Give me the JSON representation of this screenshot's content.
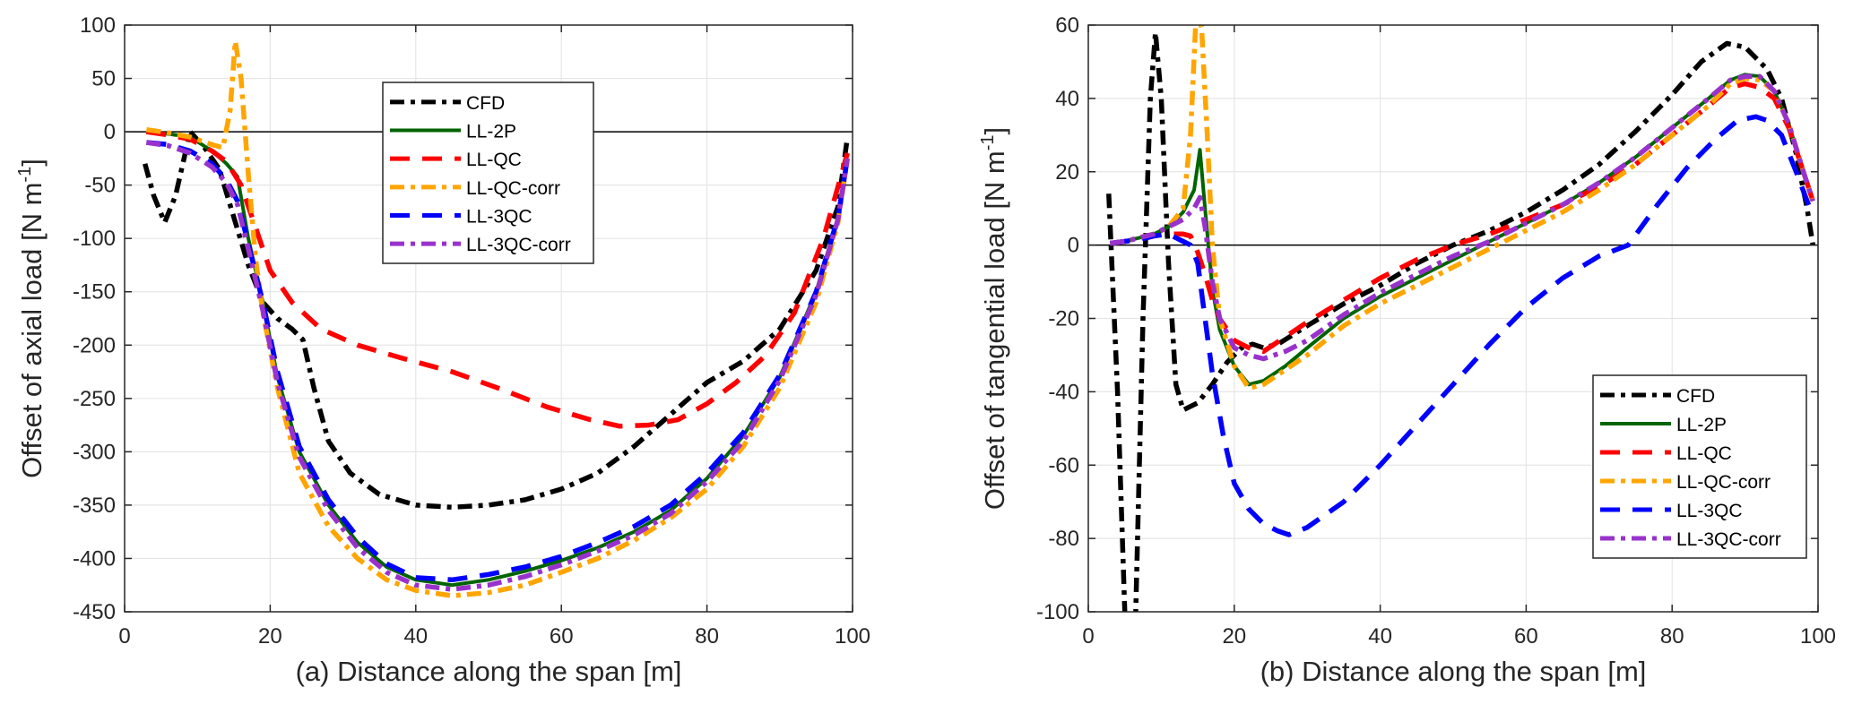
{
  "chart_data": [
    {
      "id": "axial",
      "type": "line",
      "xlabel": "(a) Distance along the span [m]",
      "ylabel": "Offset of axial load [N m",
      "ylabel_sup": "-1",
      "ylabel_end": "]",
      "xlim": [
        0,
        100
      ],
      "ylim": [
        -450,
        100
      ],
      "xticks": [
        0,
        20,
        40,
        60,
        80,
        100
      ],
      "yticks": [
        100,
        50,
        0,
        -50,
        -100,
        -150,
        -200,
        -250,
        -300,
        -350,
        -400,
        -450
      ],
      "grid": true,
      "zero_line": true,
      "legend_position": "top-center",
      "series": [
        {
          "name": "CFD",
          "color": "#000000",
          "style": "dashdot",
          "x": [
            2.8,
            4,
            5.5,
            7,
            9,
            11,
            13,
            15,
            17,
            19,
            21,
            23,
            24.5,
            26,
            28,
            31,
            35,
            40,
            45,
            50,
            55,
            60,
            65,
            70,
            75,
            80,
            85,
            90,
            95,
            98,
            99.3
          ],
          "y": [
            -30,
            -60,
            -85,
            -60,
            0,
            -15,
            -35,
            -80,
            -125,
            -160,
            -175,
            -185,
            -195,
            -240,
            -290,
            -320,
            -340,
            -350,
            -352,
            -350,
            -345,
            -335,
            -320,
            -295,
            -265,
            -235,
            -215,
            -185,
            -130,
            -70,
            -5
          ]
        },
        {
          "name": "LL-2P",
          "color": "#006400",
          "style": "solid",
          "x": [
            3,
            6,
            9,
            12,
            14,
            15.5,
            17,
            19,
            21,
            24,
            28,
            32,
            36,
            40,
            45,
            50,
            55,
            60,
            65,
            70,
            75,
            80,
            85,
            90,
            95,
            98,
            99.3
          ],
          "y": [
            0,
            -2,
            -5,
            -18,
            -30,
            -42,
            -100,
            -160,
            -230,
            -300,
            -350,
            -385,
            -408,
            -420,
            -425,
            -420,
            -412,
            -402,
            -390,
            -375,
            -355,
            -325,
            -285,
            -230,
            -150,
            -80,
            -25
          ]
        },
        {
          "name": "LL-QC",
          "color": "#ff0000",
          "style": "dashed",
          "x": [
            3,
            6,
            9,
            12,
            14,
            16,
            18,
            20,
            23,
            27,
            32,
            38,
            45,
            52,
            58,
            64,
            68,
            72,
            76,
            80,
            84,
            88,
            92,
            96,
            99.3
          ],
          "y": [
            0,
            -3,
            -7,
            -18,
            -28,
            -50,
            -90,
            -130,
            -160,
            -185,
            -200,
            -212,
            -225,
            -242,
            -258,
            -270,
            -276,
            -275,
            -270,
            -255,
            -235,
            -210,
            -170,
            -100,
            -20
          ]
        },
        {
          "name": "LL-QC-corr",
          "color": "#ffa500",
          "style": "dashdot",
          "x": [
            3,
            6,
            9,
            12,
            13.5,
            14.5,
            15.2,
            16,
            17,
            18,
            19,
            21,
            24,
            28,
            32,
            36,
            40,
            45,
            50,
            55,
            60,
            65,
            70,
            75,
            80,
            85,
            90,
            95,
            98,
            99.3
          ],
          "y": [
            2,
            -1,
            -5,
            -12,
            -15,
            20,
            85,
            50,
            -40,
            -120,
            -170,
            -240,
            -320,
            -370,
            -400,
            -420,
            -430,
            -435,
            -432,
            -425,
            -413,
            -400,
            -383,
            -362,
            -335,
            -295,
            -240,
            -160,
            -85,
            -25
          ]
        },
        {
          "name": "LL-3QC",
          "color": "#0000ff",
          "style": "dashed",
          "x": [
            3,
            6,
            9,
            12,
            14,
            15.5,
            17,
            19,
            21,
            24,
            28,
            32,
            36,
            40,
            45,
            50,
            55,
            60,
            65,
            70,
            75,
            80,
            85,
            90,
            95,
            98,
            99.3
          ],
          "y": [
            -10,
            -12,
            -18,
            -30,
            -45,
            -65,
            -105,
            -160,
            -225,
            -295,
            -345,
            -380,
            -405,
            -418,
            -420,
            -415,
            -408,
            -398,
            -385,
            -370,
            -350,
            -320,
            -282,
            -228,
            -150,
            -80,
            -25
          ]
        },
        {
          "name": "LL-3QC-corr",
          "color": "#9932cc",
          "style": "dashdot",
          "x": [
            3,
            6,
            9,
            12,
            14,
            15.5,
            17,
            19,
            21,
            24,
            28,
            32,
            36,
            40,
            45,
            50,
            55,
            60,
            65,
            70,
            75,
            80,
            85,
            90,
            95,
            98,
            99.3
          ],
          "y": [
            -10,
            -13,
            -20,
            -33,
            -48,
            -68,
            -110,
            -168,
            -235,
            -305,
            -355,
            -390,
            -413,
            -425,
            -429,
            -425,
            -417,
            -406,
            -393,
            -378,
            -358,
            -328,
            -290,
            -233,
            -153,
            -82,
            -25
          ]
        }
      ]
    },
    {
      "id": "tangential",
      "type": "line",
      "xlabel": "(b) Distance along the span [m]",
      "ylabel": "Offset of tangential load [N m",
      "ylabel_sup": "-1",
      "ylabel_end": "]",
      "xlim": [
        0,
        100
      ],
      "ylim": [
        -100,
        60
      ],
      "xticks": [
        0,
        20,
        40,
        60,
        80,
        100
      ],
      "yticks": [
        60,
        40,
        20,
        0,
        -20,
        -40,
        -60,
        -80,
        -100
      ],
      "grid": true,
      "zero_line": true,
      "legend_position": "bottom-right",
      "series": [
        {
          "name": "CFD",
          "color": "#000000",
          "style": "dashdot",
          "x": [
            2.8,
            4,
            5,
            5.8,
            6.5,
            7.5,
            8.5,
            9.2,
            10,
            11,
            12,
            13,
            15,
            17,
            19,
            21,
            22.5,
            24,
            26,
            30,
            35,
            40,
            45,
            50,
            55,
            60,
            65,
            70,
            75,
            80,
            84,
            87.5,
            90,
            93,
            95,
            97,
            98.5,
            99.3
          ],
          "y": [
            14,
            -40,
            -100,
            -130,
            -100,
            -20,
            40,
            58,
            40,
            -5,
            -38,
            -45,
            -43,
            -38,
            -32,
            -28,
            -27,
            -28,
            -27,
            -22,
            -16,
            -11,
            -5,
            0,
            4,
            9,
            15,
            22,
            31,
            41,
            50,
            55,
            54,
            48,
            40,
            25,
            10,
            0
          ]
        },
        {
          "name": "LL-2P",
          "color": "#006400",
          "style": "solid",
          "x": [
            3,
            5,
            7,
            9,
            11,
            13,
            14.5,
            15.3,
            16,
            17,
            18,
            20,
            22,
            24,
            27,
            30,
            35,
            40,
            45,
            50,
            55,
            60,
            65,
            70,
            75,
            80,
            85,
            88,
            90,
            92,
            94,
            96,
            98,
            99.3
          ],
          "y": [
            0.5,
            1,
            2,
            3,
            5,
            9,
            15,
            26,
            10,
            -12,
            -23,
            -33,
            -38,
            -37,
            -33,
            -28,
            -20,
            -14,
            -9,
            -4,
            1,
            6,
            11,
            17,
            24,
            32,
            40,
            45,
            46.5,
            46,
            42,
            33,
            20,
            12
          ]
        },
        {
          "name": "LL-QC",
          "color": "#ff0000",
          "style": "dashed",
          "x": [
            3,
            5,
            7,
            9,
            11,
            13,
            14,
            15,
            16,
            17,
            18,
            20,
            22,
            24,
            27,
            30,
            35,
            40,
            45,
            50,
            55,
            60,
            65,
            70,
            75,
            80,
            85,
            88,
            90,
            92,
            94,
            96,
            98,
            99.3
          ],
          "y": [
            0.5,
            1,
            1.5,
            2.5,
            3,
            3,
            2.5,
            -2,
            -8,
            -15,
            -20,
            -26,
            -28,
            -29,
            -25,
            -21,
            -15,
            -9,
            -4,
            0,
            3,
            7,
            11,
            16,
            22,
            30,
            38,
            43,
            44,
            43,
            40,
            32,
            20,
            12
          ]
        },
        {
          "name": "LL-QC-corr",
          "color": "#ffa500",
          "style": "dashdot",
          "x": [
            3,
            5,
            7,
            9,
            11,
            13,
            14,
            14.7,
            15.5,
            16.3,
            17,
            18,
            20,
            22,
            24,
            27,
            30,
            35,
            40,
            45,
            50,
            55,
            60,
            65,
            70,
            75,
            80,
            85,
            88,
            90,
            92,
            94,
            96,
            98,
            99.3
          ],
          "y": [
            0.5,
            1,
            2,
            3,
            5,
            10,
            30,
            60,
            60,
            30,
            0,
            -20,
            -33,
            -39,
            -38,
            -34,
            -30,
            -22,
            -16,
            -11,
            -6,
            -1,
            4,
            9,
            15,
            22,
            30,
            38,
            44,
            45.5,
            45,
            42,
            33,
            20,
            12
          ]
        },
        {
          "name": "LL-3QC",
          "color": "#0000ff",
          "style": "dashed",
          "x": [
            3,
            5,
            7,
            9,
            11,
            12,
            13,
            14,
            15,
            16,
            17,
            18.5,
            20,
            22,
            24,
            26,
            27.5,
            30,
            35,
            40,
            45,
            50,
            55,
            60,
            65,
            70,
            74,
            78,
            82,
            86,
            89,
            91.5,
            93,
            95,
            97,
            98.5,
            99.3
          ],
          "y": [
            0.5,
            1,
            1.5,
            2.5,
            3,
            2,
            1,
            0,
            -5,
            -20,
            -35,
            -52,
            -65,
            -72,
            -76,
            -78,
            -79,
            -77,
            -70,
            -60,
            -49,
            -38,
            -27,
            -17,
            -9,
            -3,
            0,
            11,
            21,
            29,
            34,
            35,
            34,
            30,
            20,
            12,
            8
          ]
        },
        {
          "name": "LL-3QC-corr",
          "color": "#9932cc",
          "style": "dashdot",
          "x": [
            3,
            5,
            7,
            9,
            11,
            13,
            14.5,
            15.3,
            16,
            17,
            18,
            20,
            22,
            24,
            27,
            30,
            35,
            40,
            45,
            50,
            55,
            60,
            65,
            70,
            75,
            80,
            85,
            88,
            90,
            92,
            94,
            96,
            98,
            99.3
          ],
          "y": [
            0.5,
            1,
            2,
            3,
            5,
            7,
            10,
            13,
            5,
            -10,
            -20,
            -28,
            -30,
            -31,
            -29,
            -26,
            -19,
            -13,
            -8,
            -3,
            1,
            6,
            11,
            17,
            24,
            32,
            40,
            45,
            46,
            46,
            42,
            33,
            20,
            12
          ]
        }
      ]
    }
  ]
}
